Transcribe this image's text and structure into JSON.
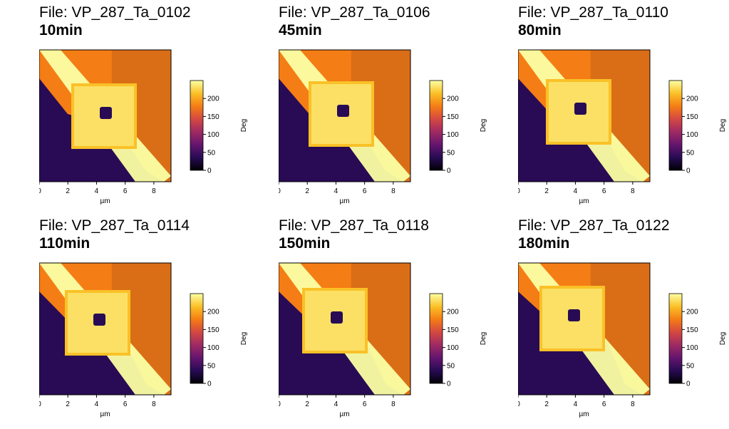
{
  "colors": {
    "colormap": [
      "#000004",
      "#280b54",
      "#65156e",
      "#9f2a63",
      "#d44842",
      "#f57d15",
      "#fac127",
      "#fcffa4"
    ],
    "frame": "#000000",
    "tick_text": "#000000"
  },
  "axis_labels": {
    "x": "µm",
    "y": "µm",
    "colorbar": "Deg"
  },
  "xy_ticks": [
    "0",
    "2",
    "4",
    "6",
    "8"
  ],
  "colorbar_ticks": [
    "0",
    "50",
    "100",
    "150",
    "200"
  ],
  "panels": [
    {
      "file": "File: VP_287_Ta_0102",
      "time": "10min"
    },
    {
      "file": "File: VP_287_Ta_0106",
      "time": "45min"
    },
    {
      "file": "File: VP_287_Ta_0110",
      "time": "80min"
    },
    {
      "file": "File: VP_287_Ta_0114",
      "time": "110min"
    },
    {
      "file": "File: VP_287_Ta_0118",
      "time": "150min"
    },
    {
      "file": "File: VP_287_Ta_0122",
      "time": "180min"
    }
  ]
}
